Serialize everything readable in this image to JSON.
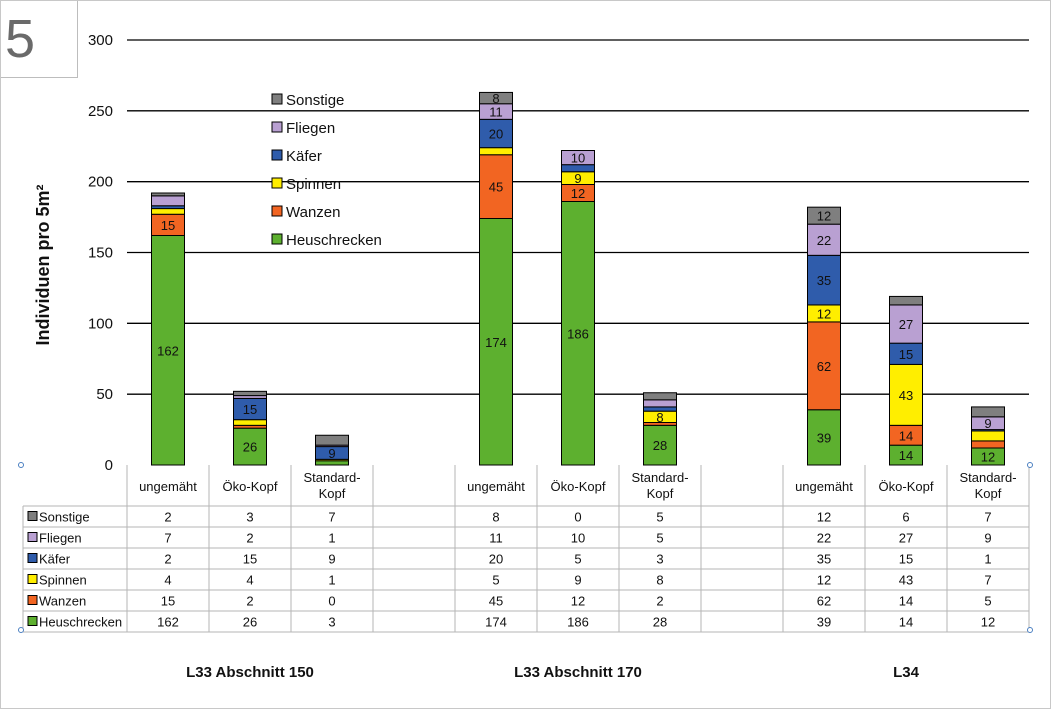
{
  "page": {
    "figure_number": "5"
  },
  "chart_data": {
    "type": "bar",
    "stacked": true,
    "ylabel": "Individuen pro 5m²",
    "ylim": [
      0,
      300
    ],
    "yticks": [
      0,
      50,
      100,
      150,
      200,
      250,
      300
    ],
    "grid": true,
    "legend_position": "top-left (inside plot)",
    "groups": [
      {
        "label": "L33 Abschnitt 150",
        "categories": [
          "ungemäht",
          "Öko-Kopf",
          "Standard-Kopf"
        ]
      },
      {
        "label": "L33 Abschnitt 170",
        "categories": [
          "ungemäht",
          "Öko-Kopf",
          "Standard-Kopf"
        ]
      },
      {
        "label": "L34",
        "categories": [
          "ungemäht",
          "Öko-Kopf",
          "Standard-Kopf"
        ]
      }
    ],
    "series": [
      {
        "name": "Heuschrecken",
        "color": "#5db02f",
        "values": [
          162,
          26,
          3,
          174,
          186,
          28,
          39,
          14,
          12
        ]
      },
      {
        "name": "Wanzen",
        "color": "#f26522",
        "values": [
          15,
          2,
          0,
          45,
          12,
          2,
          62,
          14,
          5
        ]
      },
      {
        "name": "Spinnen",
        "color": "#ffee00",
        "values": [
          4,
          4,
          1,
          5,
          9,
          8,
          12,
          43,
          7
        ]
      },
      {
        "name": "Käfer",
        "color": "#2f5cab",
        "values": [
          2,
          15,
          9,
          20,
          5,
          3,
          35,
          15,
          1
        ]
      },
      {
        "name": "Fliegen",
        "color": "#b9a0d2",
        "values": [
          7,
          2,
          1,
          11,
          10,
          5,
          22,
          27,
          9
        ]
      },
      {
        "name": "Sonstige",
        "color": "#7f7f7f",
        "values": [
          2,
          3,
          7,
          8,
          0,
          5,
          12,
          6,
          7
        ]
      }
    ],
    "legend_order": [
      "Sonstige",
      "Fliegen",
      "Käfer",
      "Spinnen",
      "Wanzen",
      "Heuschrecken"
    ],
    "data_labels": [
      {
        "series": "Heuschrecken",
        "bar": 0,
        "text": "162"
      },
      {
        "series": "Wanzen",
        "bar": 0,
        "text": "15"
      },
      {
        "series": "Heuschrecken",
        "bar": 1,
        "text": "26"
      },
      {
        "series": "Käfer",
        "bar": 1,
        "text": "15"
      },
      {
        "series": "Käfer",
        "bar": 2,
        "text": "9"
      },
      {
        "series": "Heuschrecken",
        "bar": 3,
        "text": "174"
      },
      {
        "series": "Wanzen",
        "bar": 3,
        "text": "45"
      },
      {
        "series": "Käfer",
        "bar": 3,
        "text": "20"
      },
      {
        "series": "Fliegen",
        "bar": 3,
        "text": "11"
      },
      {
        "series": "Sonstige",
        "bar": 3,
        "text": "8"
      },
      {
        "series": "Heuschrecken",
        "bar": 4,
        "text": "186"
      },
      {
        "series": "Wanzen",
        "bar": 4,
        "text": "12"
      },
      {
        "series": "Spinnen",
        "bar": 4,
        "text": "9"
      },
      {
        "series": "Fliegen",
        "bar": 4,
        "text": "10"
      },
      {
        "series": "Heuschrecken",
        "bar": 5,
        "text": "28"
      },
      {
        "series": "Spinnen",
        "bar": 5,
        "text": "8"
      },
      {
        "series": "Heuschrecken",
        "bar": 6,
        "text": "39"
      },
      {
        "series": "Wanzen",
        "bar": 6,
        "text": "62"
      },
      {
        "series": "Spinnen",
        "bar": 6,
        "text": "12"
      },
      {
        "series": "Käfer",
        "bar": 6,
        "text": "35"
      },
      {
        "series": "Fliegen",
        "bar": 6,
        "text": "22"
      },
      {
        "series": "Sonstige",
        "bar": 6,
        "text": "12"
      },
      {
        "series": "Heuschrecken",
        "bar": 7,
        "text": "14"
      },
      {
        "series": "Wanzen",
        "bar": 7,
        "text": "14"
      },
      {
        "series": "Spinnen",
        "bar": 7,
        "text": "43"
      },
      {
        "series": "Käfer",
        "bar": 7,
        "text": "15"
      },
      {
        "series": "Fliegen",
        "bar": 7,
        "text": "27"
      },
      {
        "series": "Heuschrecken",
        "bar": 8,
        "text": "12"
      },
      {
        "series": "Fliegen",
        "bar": 8,
        "text": "9"
      }
    ]
  }
}
